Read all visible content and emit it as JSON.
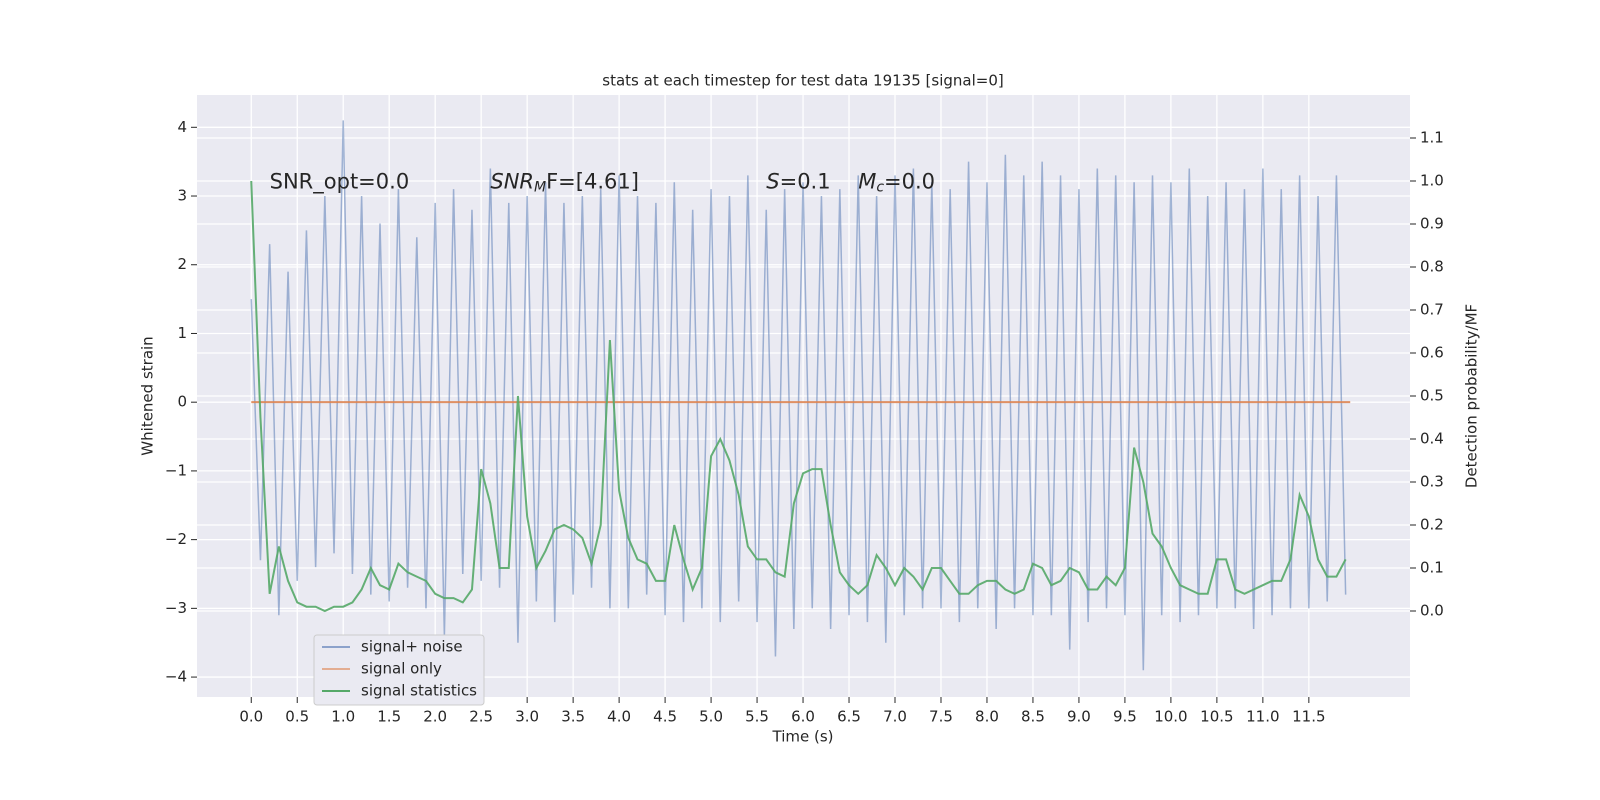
{
  "chart_data": {
    "type": "line",
    "title": "stats at each timestep for test data 19135 [signal=0]",
    "xlabel": "Time (s)",
    "ylabel": "Whitened strain",
    "y2label": "Detection probability/MF",
    "xlim": [
      -0.59,
      12.6
    ],
    "ylim": [
      -4.29,
      4.47
    ],
    "y2lim": [
      -0.2,
      1.2
    ],
    "xticks": [
      {
        "value": 0,
        "label": "0.0"
      },
      0.5,
      {
        "value": 1,
        "label": "1.0"
      },
      1.5,
      {
        "value": 2,
        "label": "2.0"
      },
      2.5,
      {
        "value": 3,
        "label": "3.0"
      },
      3.5,
      {
        "value": 4,
        "label": "4.0"
      },
      4.5,
      {
        "value": 5,
        "label": "5.0"
      },
      5.5,
      {
        "value": 6,
        "label": "6.0"
      },
      6.5,
      {
        "value": 7,
        "label": "7.0"
      },
      7.5,
      {
        "value": 8,
        "label": "8.0"
      },
      8.5,
      {
        "value": 9,
        "label": "9.0"
      },
      9.5,
      {
        "value": 10,
        "label": "10.0"
      },
      10.5,
      {
        "value": 11,
        "label": "11.0"
      },
      11.5
    ],
    "yticks": [
      {
        "value": -4,
        "label": "−4"
      },
      {
        "value": -3,
        "label": "−3"
      },
      {
        "value": -2,
        "label": "−2"
      },
      {
        "value": -1,
        "label": "−1"
      },
      0,
      1,
      2,
      3,
      4
    ],
    "y2ticks": [
      {
        "value": 0,
        "label": "0.0"
      },
      0.1,
      0.2,
      0.3,
      0.4,
      0.5,
      0.6,
      0.7,
      0.8,
      0.9,
      {
        "value": 1,
        "label": "1.0"
      },
      1.1
    ],
    "grid": true,
    "legend": "lower left",
    "x": [
      0,
      0.1,
      0.2,
      0.3,
      0.4,
      0.5,
      0.6,
      0.7,
      0.8,
      0.9,
      1,
      1.1,
      1.2,
      1.3,
      1.4,
      1.5,
      1.6,
      1.7,
      1.8,
      1.9,
      2,
      2.1,
      2.2,
      2.3,
      2.4,
      2.5,
      2.6,
      2.7,
      2.8,
      2.9,
      3,
      3.1,
      3.2,
      3.3,
      3.4,
      3.5,
      3.6,
      3.7,
      3.8,
      3.9,
      4,
      4.1,
      4.2,
      4.3,
      4.4,
      4.5,
      4.6,
      4.7,
      4.8,
      4.9,
      5,
      5.1,
      5.2,
      5.3,
      5.4,
      5.5,
      5.6,
      5.7,
      5.8,
      5.9,
      6,
      6.1,
      6.2,
      6.3,
      6.4,
      6.5,
      6.6,
      6.7,
      6.8,
      6.9,
      7,
      7.1,
      7.2,
      7.3,
      7.4,
      7.5,
      7.6,
      7.7,
      7.8,
      7.9,
      8,
      8.1,
      8.2,
      8.3,
      8.4,
      8.5,
      8.6,
      8.7,
      8.8,
      8.9,
      9,
      9.1,
      9.2,
      9.3,
      9.4,
      9.5,
      9.6,
      9.7,
      9.8,
      9.9,
      10,
      10.1,
      10.2,
      10.3,
      10.4,
      10.5,
      10.6,
      10.7,
      10.8,
      10.9,
      11,
      11.1,
      11.2,
      11.3,
      11.4,
      11.5,
      11.6,
      11.7,
      11.8,
      11.9
    ],
    "series": [
      {
        "name": "signal+ noise",
        "color": "#4c72b0",
        "values": [
          1.5,
          -2.3,
          2.3,
          -3.1,
          1.9,
          -2.6,
          2.5,
          -2.4,
          3.0,
          -2.2,
          4.1,
          -2.5,
          3.0,
          -2.8,
          2.6,
          -2.9,
          3.1,
          -2.7,
          2.4,
          -3.0,
          2.9,
          -3.4,
          3.1,
          -2.5,
          2.8,
          -2.6,
          3.4,
          -2.7,
          2.9,
          -3.5,
          3.0,
          -2.9,
          3.2,
          -3.2,
          2.9,
          -2.8,
          3.0,
          -2.7,
          3.1,
          -3.0,
          3.3,
          -3.0,
          3.0,
          -2.8,
          2.9,
          -3.1,
          3.2,
          -3.2,
          2.8,
          -3.0,
          3.1,
          -3.2,
          3.0,
          -2.9,
          3.3,
          -3.2,
          2.8,
          -3.7,
          3.1,
          -3.3,
          3.2,
          -3.0,
          3.0,
          -3.3,
          3.1,
          -3.1,
          3.3,
          -3.2,
          3.0,
          -3.5,
          3.3,
          -3.1,
          3.4,
          -3.0,
          3.2,
          -3.0,
          3.1,
          -3.2,
          3.5,
          -3.0,
          3.2,
          -3.3,
          3.6,
          -3.0,
          3.3,
          -3.1,
          3.5,
          -3.1,
          3.3,
          -3.6,
          3.1,
          -3.2,
          3.4,
          -3.0,
          3.3,
          -3.1,
          3.2,
          -3.9,
          3.3,
          -3.1,
          3.2,
          -3.2,
          3.4,
          -3.1,
          3.0,
          -3.0,
          3.2,
          -3.0,
          3.1,
          -3.3,
          3.4,
          -3.1,
          3.1,
          -3.0,
          3.3,
          -3.0,
          3.0,
          -2.9,
          3.3,
          -2.8
        ]
      },
      {
        "name": "signal only",
        "color": "#dd8452",
        "x": [
          0,
          11.95
        ],
        "values": [
          0,
          0
        ]
      },
      {
        "name": "signal statistics",
        "color": "#55a868",
        "axis": "y2",
        "values": [
          1.0,
          0.45,
          0.04,
          0.15,
          0.07,
          0.02,
          0.01,
          0.01,
          0.0,
          0.01,
          0.01,
          0.02,
          0.05,
          0.1,
          0.06,
          0.05,
          0.11,
          0.09,
          0.08,
          0.07,
          0.04,
          0.03,
          0.03,
          0.02,
          0.05,
          0.33,
          0.25,
          0.1,
          0.1,
          0.5,
          0.22,
          0.1,
          0.14,
          0.19,
          0.2,
          0.19,
          0.17,
          0.11,
          0.2,
          0.63,
          0.28,
          0.17,
          0.12,
          0.11,
          0.07,
          0.07,
          0.2,
          0.12,
          0.05,
          0.1,
          0.36,
          0.4,
          0.35,
          0.27,
          0.15,
          0.12,
          0.12,
          0.09,
          0.08,
          0.25,
          0.32,
          0.33,
          0.33,
          0.2,
          0.09,
          0.06,
          0.04,
          0.06,
          0.13,
          0.1,
          0.06,
          0.1,
          0.08,
          0.05,
          0.1,
          0.1,
          0.07,
          0.04,
          0.04,
          0.06,
          0.07,
          0.07,
          0.05,
          0.04,
          0.05,
          0.11,
          0.1,
          0.06,
          0.07,
          0.1,
          0.09,
          0.05,
          0.05,
          0.08,
          0.06,
          0.1,
          0.38,
          0.3,
          0.18,
          0.15,
          0.1,
          0.06,
          0.05,
          0.04,
          0.04,
          0.12,
          0.12,
          0.05,
          0.04,
          0.05,
          0.06,
          0.07,
          0.07,
          0.12,
          0.27,
          0.22,
          0.12,
          0.08,
          0.08,
          0.12
        ]
      }
    ],
    "annotations": [
      {
        "parts": [
          "SNR_opt=0.0"
        ],
        "x": 0.2,
        "y": 3.2
      },
      {
        "parts": [
          "SNR",
          "M",
          "F=[4.61]"
        ],
        "x": 2.6,
        "y": 3.2
      },
      {
        "parts": [
          "S",
          "=0.1"
        ],
        "x": 5.6,
        "y": 3.2
      },
      {
        "parts": [
          "M",
          "c",
          "=0.0"
        ],
        "x": 6.6,
        "y": 3.2
      }
    ]
  }
}
